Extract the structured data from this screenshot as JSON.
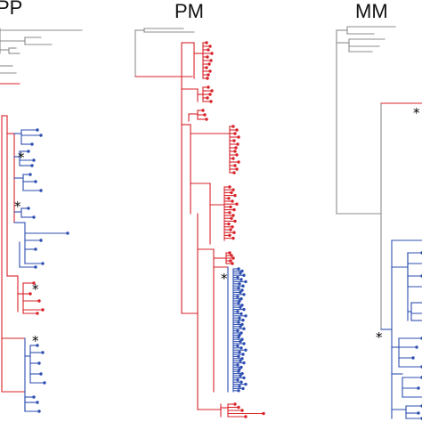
{
  "panels": [
    {
      "id": "pp",
      "title": "PP",
      "star_count": 4
    },
    {
      "id": "pm",
      "title": "PM",
      "star_count": 1
    },
    {
      "id": "mm",
      "title": "MM",
      "star_count": 2
    }
  ],
  "marker": "*",
  "colors": {
    "outgroup": "#8c8c8c",
    "red_clade": "#d8232a",
    "blue_clade": "#2e4fb1",
    "star": "#000000"
  }
}
